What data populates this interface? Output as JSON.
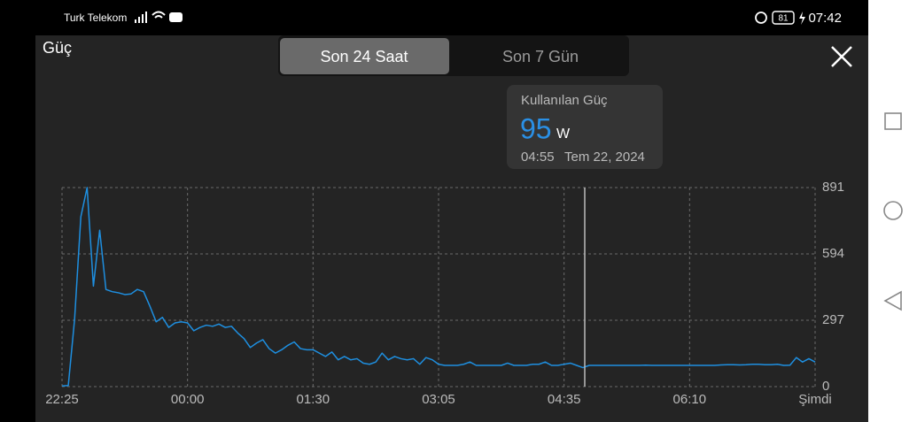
{
  "status_bar": {
    "carrier": "Turk Telekom",
    "battery": "81",
    "time": "07:42"
  },
  "header": {
    "title": "Güç"
  },
  "tabs": [
    "Son 24 Saat",
    "Son 7 Gün"
  ],
  "tooltip": {
    "label": "Kullanılan Güç",
    "value": 95,
    "unit": "W",
    "time": "04:55",
    "date": "Tem 22, 2024"
  },
  "chart_data": {
    "type": "line",
    "categories": [
      "22:25",
      null,
      null,
      null,
      null,
      null,
      null,
      null,
      null,
      null,
      null,
      null,
      null,
      null,
      null,
      null,
      null,
      null,
      null,
      null,
      "00:00",
      null,
      null,
      null,
      null,
      null,
      null,
      null,
      null,
      null,
      null,
      null,
      null,
      null,
      null,
      null,
      null,
      null,
      null,
      null,
      "01:30",
      null,
      null,
      null,
      null,
      null,
      null,
      null,
      null,
      null,
      null,
      null,
      null,
      null,
      null,
      null,
      null,
      null,
      null,
      null,
      "03:05",
      null,
      null,
      null,
      null,
      null,
      null,
      null,
      null,
      null,
      null,
      null,
      null,
      null,
      null,
      null,
      null,
      null,
      null,
      null,
      "04:35",
      null,
      null,
      null,
      null,
      null,
      null,
      null,
      null,
      null,
      null,
      null,
      null,
      null,
      null,
      null,
      null,
      null,
      null,
      null,
      "06:10",
      null,
      null,
      null,
      null,
      null,
      null,
      null,
      null,
      null,
      null,
      null,
      null,
      null,
      null,
      null,
      null,
      null,
      null,
      null,
      "Şimdi"
    ],
    "values": [
      3,
      5,
      300,
      760,
      891,
      450,
      700,
      435,
      425,
      420,
      412,
      415,
      435,
      425,
      360,
      290,
      310,
      265,
      285,
      290,
      285,
      250,
      265,
      275,
      270,
      280,
      265,
      270,
      240,
      215,
      175,
      195,
      210,
      170,
      150,
      165,
      185,
      200,
      170,
      165,
      165,
      150,
      135,
      155,
      120,
      135,
      120,
      125,
      105,
      100,
      110,
      150,
      120,
      135,
      125,
      120,
      125,
      100,
      130,
      120,
      100,
      95,
      95,
      95,
      100,
      110,
      95,
      95,
      95,
      95,
      95,
      105,
      95,
      95,
      95,
      100,
      100,
      110,
      95,
      95,
      100,
      105,
      95,
      85,
      95,
      95,
      95,
      95,
      95,
      95,
      95,
      95,
      95,
      96,
      95,
      95,
      95,
      95,
      95,
      95,
      95,
      95,
      95,
      95,
      95,
      97,
      98,
      98,
      97,
      98,
      100,
      100,
      98,
      98,
      100,
      95,
      96,
      130,
      110,
      125,
      110
    ],
    "color": "#1e8fe0",
    "ylim": [
      0,
      891
    ],
    "yticks": [
      0,
      297,
      594,
      891
    ],
    "grid": true
  }
}
